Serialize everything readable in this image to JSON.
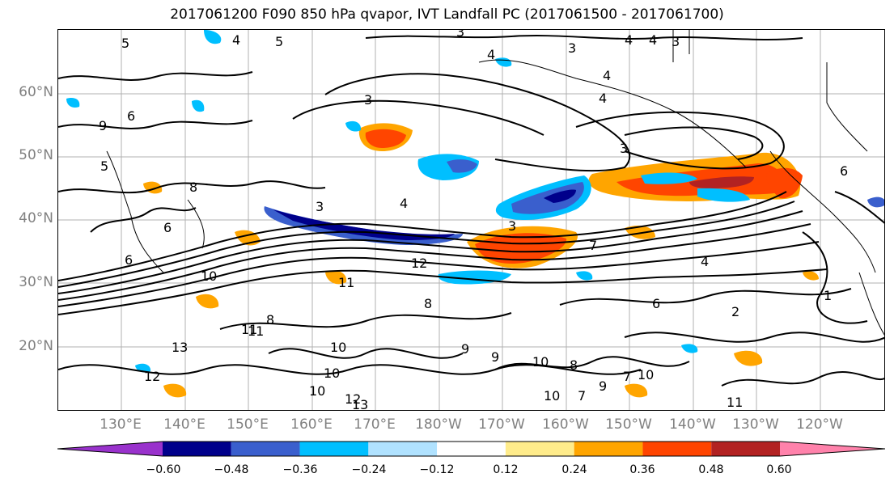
{
  "title": "2017061200 F090 850 hPa qvapor, IVT Landfall PC (2017061500 - 2017061700)",
  "lat_labels": [
    "60°N",
    "50°N",
    "40°N",
    "30°N",
    "20°N"
  ],
  "lon_labels": [
    "130°E",
    "140°E",
    "150°E",
    "160°E",
    "170°E",
    "180°W",
    "170°W",
    "160°W",
    "150°W",
    "140°W",
    "130°W",
    "120°W"
  ],
  "colorbar": {
    "colors": [
      "#9932CC",
      "#00008B",
      "#3A5FCD",
      "#00BFFF",
      "#B0E2FF",
      "#FFFFFF",
      "#FFEC8B",
      "#FFA500",
      "#FF4500",
      "#B22222",
      "#FF82AB"
    ],
    "tick_labels": [
      "−0.60",
      "−0.48",
      "−0.36",
      "−0.24",
      "−0.12",
      "0.12",
      "0.24",
      "0.36",
      "0.48",
      "0.60"
    ]
  },
  "contour_labels": [
    "5",
    "5",
    "4",
    "3",
    "4",
    "4",
    "3",
    "4",
    "3",
    "4",
    "3",
    "4",
    "9",
    "6",
    "5",
    "3",
    "3",
    "4",
    "3",
    "6",
    "8",
    "6",
    "12",
    "10",
    "11",
    "8",
    "11",
    "13",
    "11",
    "10",
    "8",
    "9",
    "12",
    "10",
    "12",
    "13",
    "10",
    "9",
    "10",
    "8",
    "9",
    "10",
    "6",
    "7",
    "4",
    "2",
    "1",
    "7",
    "10",
    "11",
    "7",
    "6"
  ]
}
